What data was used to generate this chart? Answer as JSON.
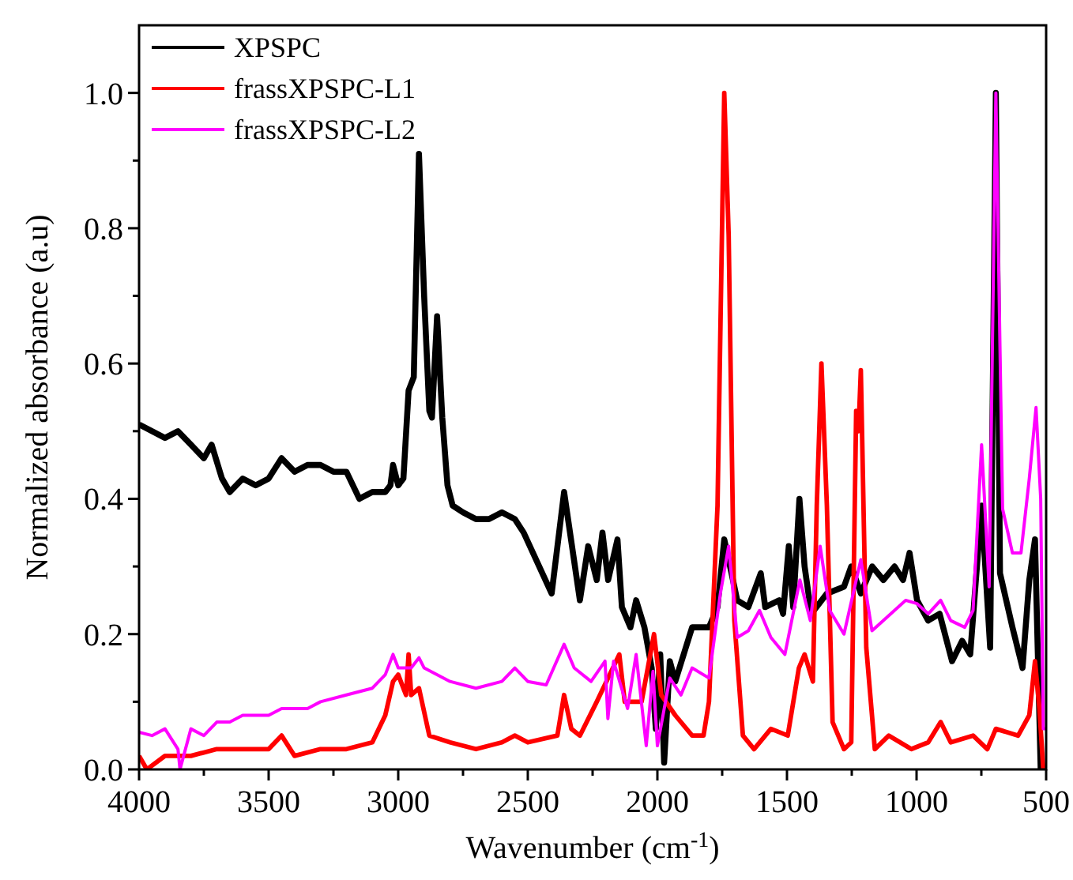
{
  "chart_data": {
    "type": "line",
    "xlabel": "Wavenumber (cm$^{-1}$)",
    "ylabel": "Normalized absorbance (a.u)",
    "xlim": [
      4000,
      500
    ],
    "ylim": [
      0,
      1.1
    ],
    "xticks": [
      4000,
      {
        "value": 3750,
        "label": null
      },
      3500,
      {
        "value": 3250,
        "label": null
      },
      3000,
      {
        "value": 2750,
        "label": null
      },
      2500,
      {
        "value": 2250,
        "label": null
      },
      2000,
      {
        "value": 1750,
        "label": null
      },
      1500,
      {
        "value": 1250,
        "label": null
      },
      1000,
      {
        "value": 750,
        "label": null
      },
      500
    ],
    "yticks": [
      {
        "value": 0,
        "label": "0.0"
      },
      {
        "value": 0.1,
        "label": null
      },
      0.2,
      {
        "value": 0.3,
        "label": null
      },
      0.4,
      {
        "value": 0.5,
        "label": null
      },
      0.6,
      {
        "value": 0.7,
        "label": null
      },
      0.8,
      {
        "value": 0.9,
        "label": null
      },
      {
        "value": 1,
        "label": "1.0"
      }
    ],
    "legend": "top left",
    "grid": false,
    "series": [
      {
        "name": "XPSPC",
        "color": "#000000",
        "x": [
          4000,
          3900,
          3850,
          3800,
          3750,
          3720,
          3680,
          3650,
          3600,
          3550,
          3500,
          3450,
          3400,
          3350,
          3300,
          3250,
          3200,
          3150,
          3100,
          3050,
          3030,
          3020,
          3000,
          2980,
          2960,
          2940,
          2920,
          2900,
          2880,
          2870,
          2850,
          2830,
          2810,
          2790,
          2750,
          2700,
          2650,
          2600,
          2550,
          2516,
          2408,
          2360,
          2299,
          2267,
          2234,
          2212,
          2190,
          2154,
          2137,
          2104,
          2082,
          2050,
          2022,
          2006,
          1989,
          1974,
          1952,
          1931,
          1866,
          1801,
          1768,
          1742,
          1714,
          1692,
          1649,
          1601,
          1584,
          1530,
          1515,
          1493,
          1476,
          1452,
          1432,
          1406,
          1346,
          1280,
          1252,
          1215,
          1171,
          1128,
          1085,
          1052,
          1027,
          998,
          955,
          911,
          863,
          824,
          793,
          749,
          716,
          694,
          678,
          630,
          591,
          565,
          543,
          521,
          500
        ],
        "values": [
          0.51,
          0.49,
          0.5,
          0.48,
          0.46,
          0.48,
          0.43,
          0.41,
          0.43,
          0.42,
          0.43,
          0.46,
          0.44,
          0.45,
          0.45,
          0.44,
          0.44,
          0.4,
          0.41,
          0.41,
          0.42,
          0.45,
          0.42,
          0.43,
          0.56,
          0.58,
          0.91,
          0.7,
          0.53,
          0.52,
          0.67,
          0.52,
          0.42,
          0.39,
          0.38,
          0.37,
          0.37,
          0.38,
          0.37,
          0.35,
          0.26,
          0.41,
          0.25,
          0.33,
          0.28,
          0.35,
          0.28,
          0.34,
          0.24,
          0.21,
          0.25,
          0.21,
          0.15,
          0.06,
          0.17,
          0.01,
          0.16,
          0.13,
          0.21,
          0.21,
          0.24,
          0.34,
          0.29,
          0.25,
          0.24,
          0.29,
          0.24,
          0.25,
          0.23,
          0.33,
          0.24,
          0.4,
          0.3,
          0.23,
          0.26,
          0.27,
          0.3,
          0.26,
          0.3,
          0.28,
          0.3,
          0.28,
          0.32,
          0.25,
          0.22,
          0.23,
          0.16,
          0.19,
          0.17,
          0.39,
          0.18,
          1.0,
          0.29,
          0.21,
          0.15,
          0.28,
          0.34,
          0,
          0
        ]
      },
      {
        "name": "frassXPSPC-L1",
        "color": "#ff0000",
        "x": [
          4000,
          3970,
          3900,
          3800,
          3700,
          3600,
          3500,
          3450,
          3400,
          3300,
          3200,
          3100,
          3050,
          3020,
          3000,
          2970,
          2960,
          2950,
          2920,
          2880,
          2800,
          2700,
          2600,
          2550,
          2500,
          2386,
          2360,
          2332,
          2299,
          2234,
          2147,
          2126,
          2061,
          2013,
          1985,
          1931,
          1866,
          1822,
          1801,
          1768,
          1742,
          1725,
          1703,
          1670,
          1627,
          1562,
          1497,
          1454,
          1432,
          1400,
          1385,
          1367,
          1346,
          1324,
          1280,
          1252,
          1233,
          1224,
          1215,
          1194,
          1161,
          1107,
          1020,
          955,
          907,
          868,
          782,
          727,
          694,
          608,
          565,
          543,
          526,
          511,
          500
        ],
        "values": [
          0.02,
          0,
          0.02,
          0.02,
          0.03,
          0.03,
          0.03,
          0.05,
          0.02,
          0.03,
          0.03,
          0.04,
          0.08,
          0.13,
          0.14,
          0.11,
          0.17,
          0.11,
          0.12,
          0.05,
          0.04,
          0.03,
          0.04,
          0.05,
          0.04,
          0.05,
          0.11,
          0.06,
          0.05,
          0.1,
          0.17,
          0.1,
          0.1,
          0.2,
          0.11,
          0.08,
          0.05,
          0.05,
          0.1,
          0.39,
          1.0,
          0.79,
          0.22,
          0.05,
          0.03,
          0.06,
          0.05,
          0.15,
          0.17,
          0.13,
          0.39,
          0.6,
          0.39,
          0.07,
          0.03,
          0.04,
          0.53,
          0.5,
          0.59,
          0.18,
          0.03,
          0.05,
          0.03,
          0.04,
          0.07,
          0.04,
          0.05,
          0.03,
          0.06,
          0.05,
          0.08,
          0.16,
          0.09,
          0,
          0
        ]
      },
      {
        "name": "frassXPSPC-L2",
        "color": "#ff00ff",
        "x": [
          4000,
          3950,
          3900,
          3850,
          3842,
          3800,
          3750,
          3700,
          3650,
          3600,
          3500,
          3450,
          3350,
          3300,
          3200,
          3100,
          3050,
          3020,
          3000,
          2950,
          2920,
          2900,
          2800,
          2700,
          2600,
          2550,
          2500,
          2429,
          2360,
          2321,
          2256,
          2202,
          2191,
          2169,
          2115,
          2082,
          2043,
          2017,
          2000,
          1952,
          1909,
          1866,
          1801,
          1757,
          1725,
          1692,
          1649,
          1606,
          1562,
          1508,
          1450,
          1410,
          1372,
          1335,
          1280,
          1215,
          1172,
          1128,
          1042,
          998,
          955,
          907,
          868,
          814,
          782,
          749,
          720,
          694,
          668,
          630,
          597,
          565,
          539,
          521,
          511,
          500
        ],
        "values": [
          0.055,
          0.05,
          0.06,
          0.03,
          0,
          0.06,
          0.05,
          0.07,
          0.07,
          0.08,
          0.08,
          0.09,
          0.09,
          0.1,
          0.11,
          0.12,
          0.14,
          0.17,
          0.15,
          0.15,
          0.165,
          0.15,
          0.13,
          0.12,
          0.13,
          0.15,
          0.13,
          0.125,
          0.185,
          0.15,
          0.13,
          0.16,
          0.075,
          0.16,
          0.09,
          0.17,
          0.035,
          0.145,
          0.035,
          0.135,
          0.11,
          0.15,
          0.135,
          0.26,
          0.33,
          0.195,
          0.205,
          0.235,
          0.195,
          0.17,
          0.28,
          0.22,
          0.33,
          0.235,
          0.2,
          0.31,
          0.205,
          0.22,
          0.25,
          0.245,
          0.23,
          0.25,
          0.22,
          0.21,
          0.235,
          0.48,
          0.27,
          1.0,
          0.385,
          0.32,
          0.32,
          0.43,
          0.535,
          0.4,
          0.06,
          0.06
        ]
      }
    ]
  }
}
